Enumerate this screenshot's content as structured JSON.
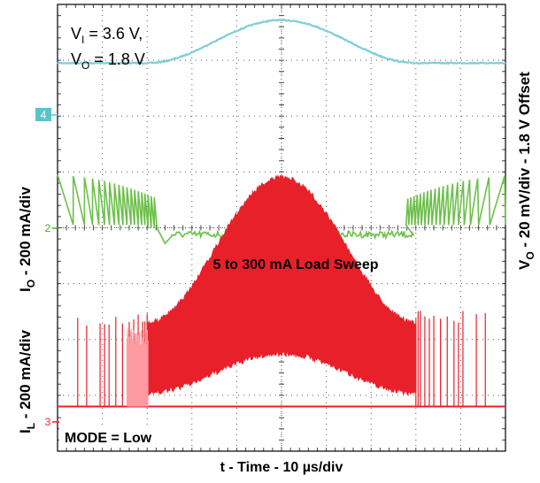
{
  "chart_data": {
    "type": "line",
    "title": "",
    "xlabel": "t - Time - 10 µs/div",
    "xlabel_parts": {
      "main": "t - Time - 10 ",
      "mu": "µ",
      "rest": "s/div"
    },
    "x_divisions": 10,
    "y_divisions": 8,
    "grid": true,
    "left_labels": {
      "io": {
        "sym": "I",
        "sub": "O",
        "rest": " - 200 mA/div"
      },
      "il": {
        "sym": "I",
        "sub": "L",
        "rest": " - 200 mA/div"
      }
    },
    "right_label": {
      "sym": "V",
      "sub": "O",
      "rest": " - 20 mV/div - 1.8 V Offset"
    },
    "annotations": {
      "vi": {
        "sym": "V",
        "sub": "I",
        "rest": " = 3.6 V,"
      },
      "vo": {
        "sym": "V",
        "sub": "O",
        "rest": " = 1.8 V"
      },
      "load_sweep": "5 to 300 mA Load Sweep",
      "mode": "MODE = Low"
    },
    "series": [
      {
        "channel": "4",
        "quantity": "V_O",
        "color": "#7ecfd6",
        "baseline_div": 1.05,
        "peak_div": 2.25,
        "shape": "raised-sine",
        "start_div": 2.0,
        "end_div": 8.0
      },
      {
        "channel": "2",
        "quantity": "I_O",
        "color": "#6cc04a",
        "baseline_div": 4.0,
        "shape": "sawtooth-bursts-then-flat"
      },
      {
        "channel": "3",
        "quantity": "I_L",
        "color": "#e8202a",
        "baseline_div": 7.2,
        "peak_div": 3.1,
        "shape": "dense-envelope-raised-sine",
        "start_div": 2.0,
        "end_div": 8.0
      }
    ],
    "markers": [
      {
        "channel": "4",
        "label": "4",
        "color": "#5bc3c9"
      },
      {
        "channel": "2",
        "label": "2",
        "color": "#49a82e"
      },
      {
        "channel": "3",
        "label": "3",
        "color": "#e8202a"
      }
    ]
  }
}
